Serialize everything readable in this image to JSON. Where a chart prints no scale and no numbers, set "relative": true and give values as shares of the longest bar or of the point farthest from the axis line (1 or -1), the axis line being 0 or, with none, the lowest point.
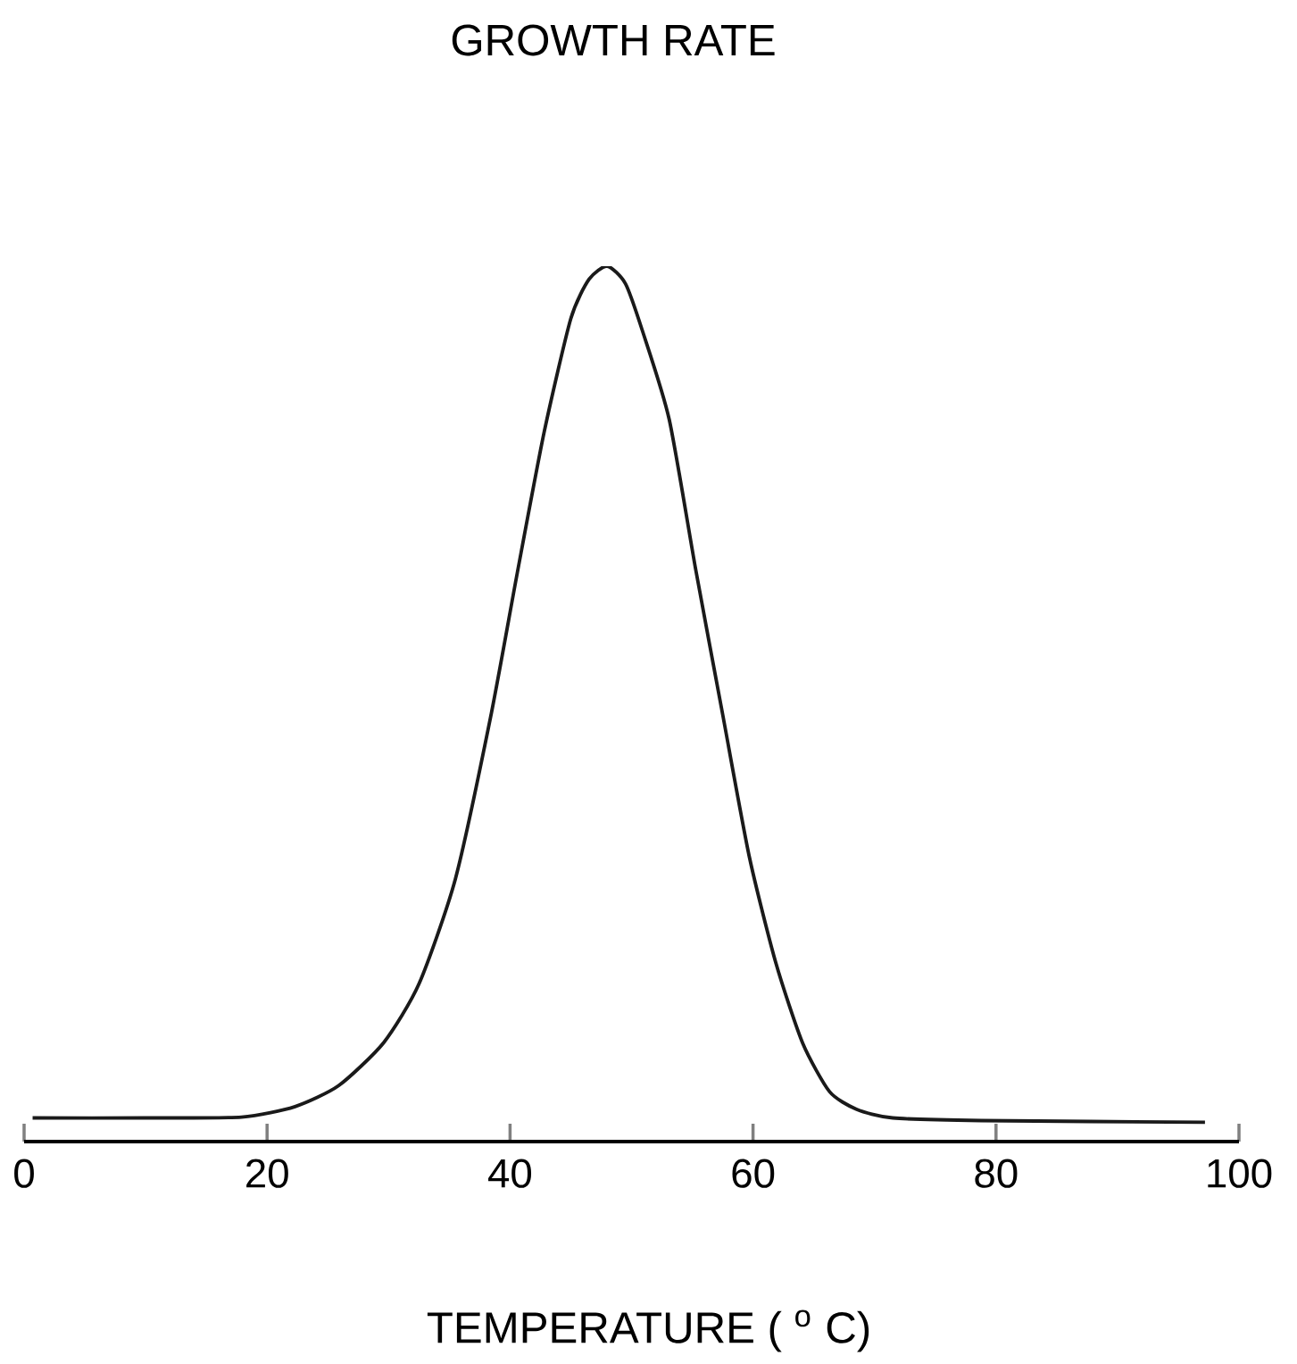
{
  "chart_data": {
    "type": "line",
    "title": "GROWTH RATE",
    "xlabel": "TEMPERATURE ( $^{o}$ C)",
    "relative": true,
    "xlim": [
      0,
      100
    ],
    "xticks": [
      0,
      20,
      40,
      60,
      80,
      100
    ],
    "grid": false,
    "x": [
      0.7,
      10,
      17.9,
      22.3,
      25.9,
      29.6,
      32.5,
      35.5,
      38.4,
      40.6,
      42.8,
      45.0,
      46.5,
      48.0,
      49.5,
      50.9,
      53.1,
      55.3,
      57.5,
      59.7,
      61.9,
      64.1,
      66.3,
      68.5,
      71.5,
      78.8,
      97.2
    ],
    "series": [
      {
        "color": "#1a1a1a",
        "values": [
          0.027,
          0.027,
          0.028,
          0.04,
          0.064,
          0.113,
          0.18,
          0.3,
          0.485,
          0.65,
          0.81,
          0.94,
          0.985,
          1.0,
          0.98,
          0.926,
          0.825,
          0.652,
          0.488,
          0.325,
          0.203,
          0.112,
          0.057,
          0.037,
          0.027,
          0.024,
          0.022
        ]
      }
    ]
  }
}
